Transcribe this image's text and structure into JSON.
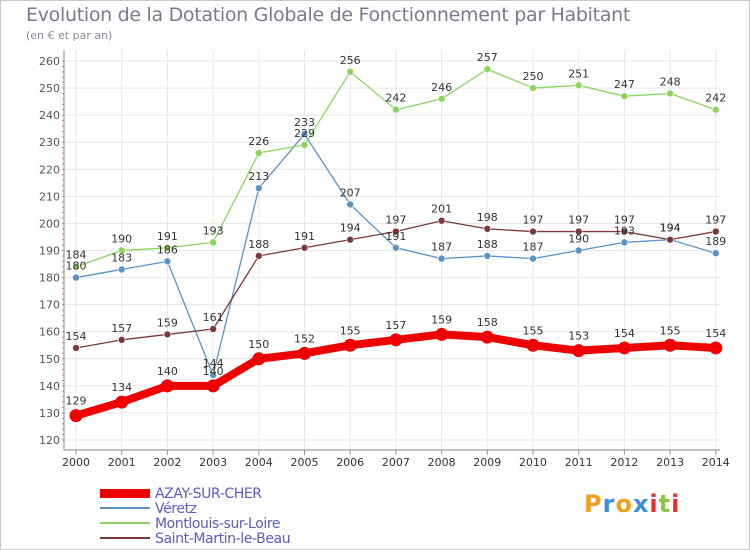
{
  "chart_data": {
    "type": "line",
    "title": "Evolution de la Dotation Globale de Fonctionnement par Habitant",
    "subtitle": "(en € et par an)",
    "xlabel": "",
    "ylabel": "",
    "categories": [
      "2000",
      "2001",
      "2002",
      "2003",
      "2004",
      "2005",
      "2006",
      "2007",
      "2008",
      "2009",
      "2010",
      "2011",
      "2012",
      "2013",
      "2014"
    ],
    "ylim": [
      120,
      260
    ],
    "yticks": [
      120,
      130,
      140,
      150,
      160,
      170,
      180,
      190,
      200,
      210,
      220,
      230,
      240,
      250,
      260
    ],
    "grid": true,
    "legend_position": "bottom-left",
    "series": [
      {
        "name": "Véretz",
        "color": "#5b92c6",
        "values": [
          180,
          183,
          186,
          144,
          213,
          233,
          207,
          191,
          187,
          188,
          187,
          190,
          193,
          194,
          189
        ],
        "labels": [
          "180",
          "183",
          "186",
          "144",
          "213",
          "233",
          "207",
          "191",
          "187",
          "188",
          "187",
          "190",
          "193",
          "194",
          "189"
        ]
      },
      {
        "name": "Montlouis-sur-Loire",
        "color": "#8dd35f",
        "values": [
          184,
          190,
          191,
          193,
          226,
          229,
          256,
          242,
          246,
          257,
          250,
          251,
          247,
          248,
          242
        ],
        "labels": [
          "184",
          "190",
          "191",
          "193",
          "226",
          "229",
          "256",
          "242",
          "246",
          "257",
          "250",
          "251",
          "247",
          "248",
          "242"
        ]
      },
      {
        "name": "Saint-Martin-le-Beau",
        "color": "#7a3a3a",
        "values": [
          154,
          157,
          159,
          161,
          188,
          191,
          194,
          197,
          201,
          198,
          197,
          197,
          197,
          194,
          197
        ],
        "labels": [
          "154",
          "157",
          "159",
          "161",
          "188",
          "191",
          "194",
          "197",
          "201",
          "198",
          "197",
          "197",
          "197",
          "194",
          "197"
        ]
      },
      {
        "name": "AZAY-SUR-CHER",
        "color": "#ee0000",
        "values": [
          129,
          134,
          140,
          140,
          150,
          152,
          155,
          157,
          159,
          158,
          155,
          153,
          154,
          155,
          154
        ],
        "labels": [
          "129",
          "134",
          "140",
          "140",
          "150",
          "152",
          "155",
          "157",
          "159",
          "158",
          "155",
          "153",
          "154",
          "155",
          "154"
        ]
      }
    ]
  },
  "legend": {
    "items": [
      {
        "label": "AZAY-SUR-CHER",
        "color": "#ee0000"
      },
      {
        "label": "Véretz",
        "color": "#5b92c6"
      },
      {
        "label": "Montlouis-sur-Loire",
        "color": "#8dd35f"
      },
      {
        "label": "Saint-Martin-le-Beau",
        "color": "#7a3a3a"
      }
    ]
  },
  "logo": {
    "letters": [
      "P",
      "r",
      "o",
      "x",
      "i",
      "t",
      "i"
    ],
    "colors": [
      "#f0a020",
      "#3a8fd8",
      "#f0a020",
      "#3a8fd8",
      "#e83030",
      "#8dc63f",
      "#e83030"
    ]
  }
}
